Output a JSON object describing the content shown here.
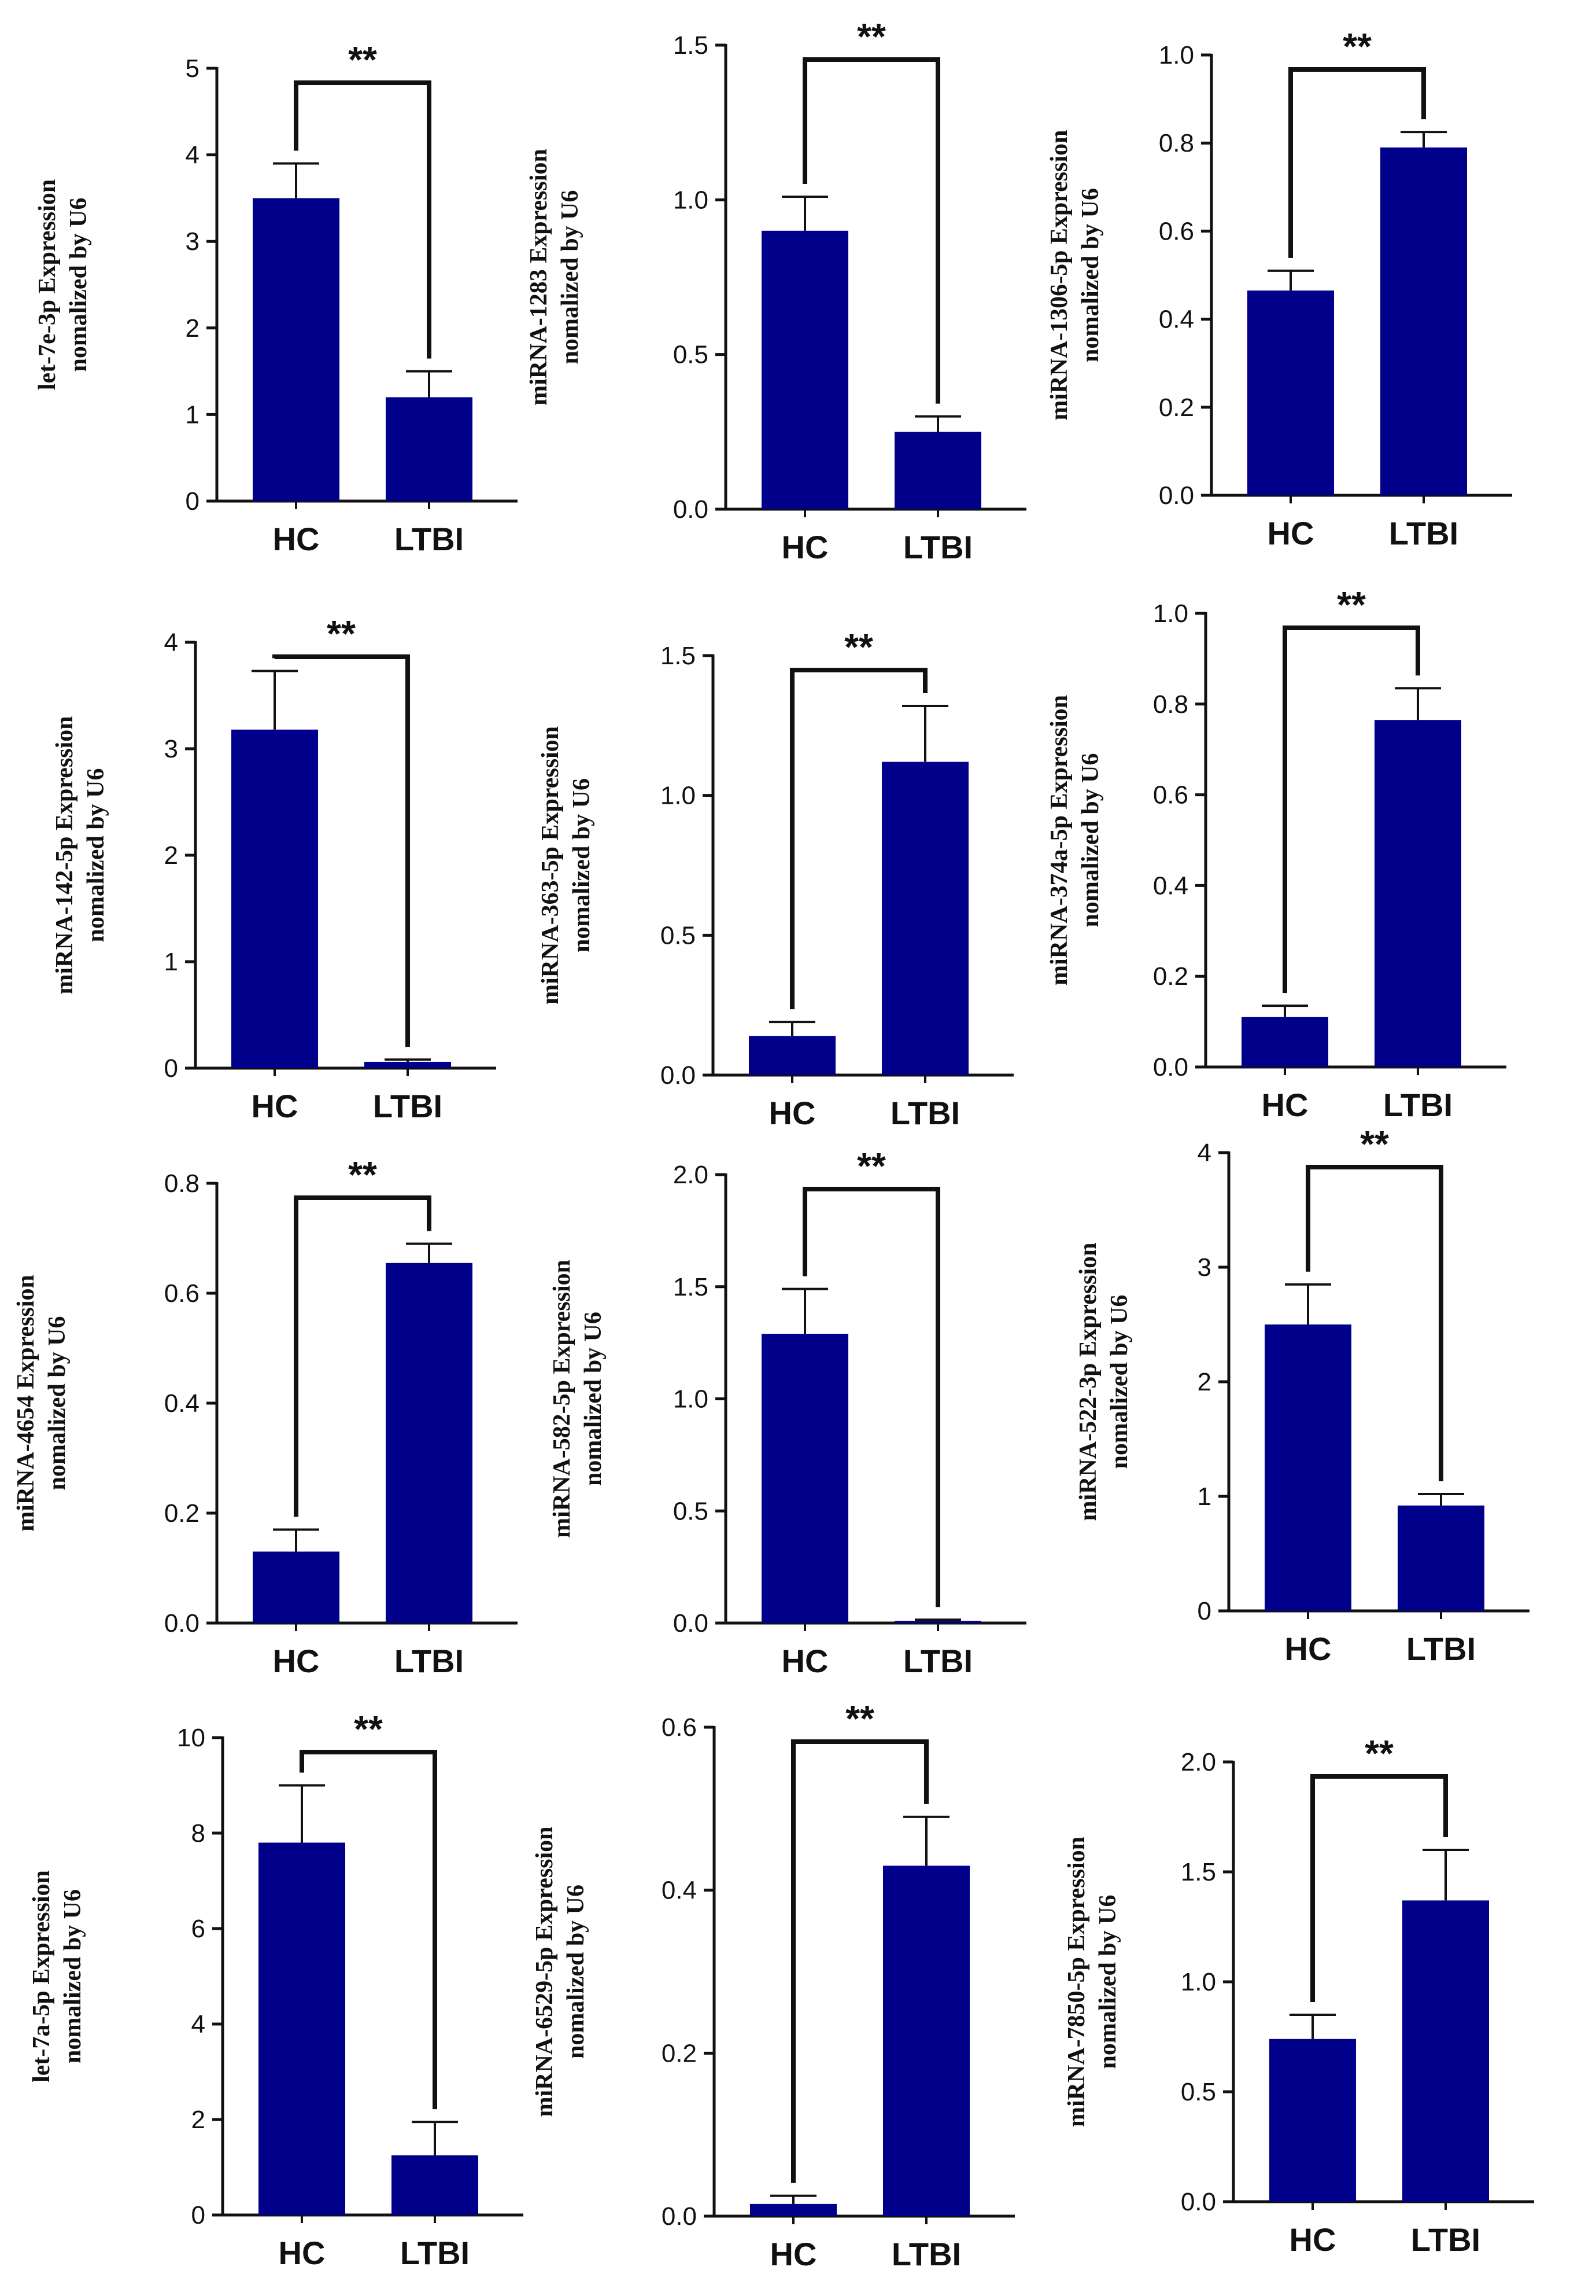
{
  "bar_color": "#00008B",
  "chart_data": [
    {
      "type": "bar",
      "categories": [
        "HC",
        "LTBI"
      ],
      "values": [
        3.5,
        1.2
      ],
      "errors": [
        0.4,
        0.3
      ],
      "ylim": [
        0,
        5
      ],
      "yticks": [
        "0",
        "1",
        "2",
        "3",
        "4",
        "5"
      ],
      "ylabel": [
        "let-7e-3p Expression",
        "nomalized by U6"
      ],
      "significance": "**"
    },
    {
      "type": "bar",
      "categories": [
        "HC",
        "LTBI"
      ],
      "values": [
        0.9,
        0.25
      ],
      "errors": [
        0.11,
        0.05
      ],
      "ylim": [
        0,
        1.5
      ],
      "yticks": [
        "0.0",
        "0.5",
        "1.0",
        "1.5"
      ],
      "ylabel": [
        "miRNA-1283 Expression",
        "nomalized by U6"
      ],
      "significance": "**"
    },
    {
      "type": "bar",
      "categories": [
        "HC",
        "LTBI"
      ],
      "values": [
        0.465,
        0.79
      ],
      "errors": [
        0.045,
        0.035
      ],
      "ylim": [
        0,
        1.0
      ],
      "yticks": [
        "0.0",
        "0.2",
        "0.4",
        "0.6",
        "0.8",
        "1.0"
      ],
      "ylabel": [
        "miRNA-1306-5p Expression",
        "nomalized by U6"
      ],
      "significance": "**"
    },
    {
      "type": "bar",
      "categories": [
        "HC",
        "LTBI"
      ],
      "values": [
        3.18,
        0.06
      ],
      "errors": [
        0.55,
        0.02
      ],
      "ylim": [
        0,
        4
      ],
      "yticks": [
        "0",
        "1",
        "2",
        "3",
        "4"
      ],
      "ylabel": [
        "miRNA-142-5p Expression",
        "nomalized by U6"
      ],
      "significance": "**"
    },
    {
      "type": "bar",
      "categories": [
        "HC",
        "LTBI"
      ],
      "values": [
        0.14,
        1.12
      ],
      "errors": [
        0.05,
        0.2
      ],
      "ylim": [
        0,
        1.5
      ],
      "yticks": [
        "0.0",
        "0.5",
        "1.0",
        "1.5"
      ],
      "ylabel": [
        "miRNA-363-5p Expression",
        "nomalized by U6"
      ],
      "significance": "**"
    },
    {
      "type": "bar",
      "categories": [
        "HC",
        "LTBI"
      ],
      "values": [
        0.11,
        0.765
      ],
      "errors": [
        0.025,
        0.07
      ],
      "ylim": [
        0,
        1.0
      ],
      "yticks": [
        "0.0",
        "0.2",
        "0.4",
        "0.6",
        "0.8",
        "1.0"
      ],
      "ylabel": [
        "miRNA-374a-5p Expression",
        "nomalized by U6"
      ],
      "significance": "**"
    },
    {
      "type": "bar",
      "categories": [
        "HC",
        "LTBI"
      ],
      "values": [
        0.13,
        0.655
      ],
      "errors": [
        0.04,
        0.035
      ],
      "ylim": [
        0,
        0.8
      ],
      "yticks": [
        "0.0",
        "0.2",
        "0.4",
        "0.6",
        "0.8"
      ],
      "ylabel": [
        "miRNA-4654 Expression",
        "nomalized by U6"
      ],
      "significance": "**"
    },
    {
      "type": "bar",
      "categories": [
        "HC",
        "LTBI"
      ],
      "values": [
        1.29,
        0.01
      ],
      "errors": [
        0.2,
        0.005
      ],
      "ylim": [
        0,
        2.0
      ],
      "yticks": [
        "0.0",
        "0.5",
        "1.0",
        "1.5",
        "2.0"
      ],
      "ylabel": [
        "miRNA-582-5p Expression",
        "nomalized by U6"
      ],
      "significance": "**"
    },
    {
      "type": "bar",
      "categories": [
        "HC",
        "LTBI"
      ],
      "values": [
        2.5,
        0.92
      ],
      "errors": [
        0.35,
        0.1
      ],
      "ylim": [
        0,
        4
      ],
      "yticks": [
        "0",
        "1",
        "2",
        "3",
        "4"
      ],
      "ylabel": [
        "miRNA-522-3p Expression",
        "nomalized by U6"
      ],
      "significance": "**"
    },
    {
      "type": "bar",
      "categories": [
        "HC",
        "LTBI"
      ],
      "values": [
        7.8,
        1.25
      ],
      "errors": [
        1.2,
        0.7
      ],
      "ylim": [
        0,
        10
      ],
      "yticks": [
        "0",
        "2",
        "4",
        "6",
        "8",
        "10"
      ],
      "ylabel": [
        "let-7a-5p Expression",
        "nomalized by U6"
      ],
      "significance": "**"
    },
    {
      "type": "bar",
      "categories": [
        "HC",
        "LTBI"
      ],
      "values": [
        0.015,
        0.43
      ],
      "errors": [
        0.01,
        0.06
      ],
      "ylim": [
        0,
        0.6
      ],
      "yticks": [
        "0.0",
        "0.2",
        "0.4",
        "0.6"
      ],
      "ylabel": [
        "miRNA-6529-5p Expression",
        "nomalized by U6"
      ],
      "significance": "**"
    },
    {
      "type": "bar",
      "categories": [
        "HC",
        "LTBI"
      ],
      "values": [
        0.74,
        1.37
      ],
      "errors": [
        0.11,
        0.23
      ],
      "ylim": [
        0,
        2.0
      ],
      "yticks": [
        "0.0",
        "0.5",
        "1.0",
        "1.5",
        "2.0"
      ],
      "ylabel": [
        "miRNA-7850-5p Expression",
        "nomalized by U6"
      ],
      "significance": "**"
    }
  ]
}
